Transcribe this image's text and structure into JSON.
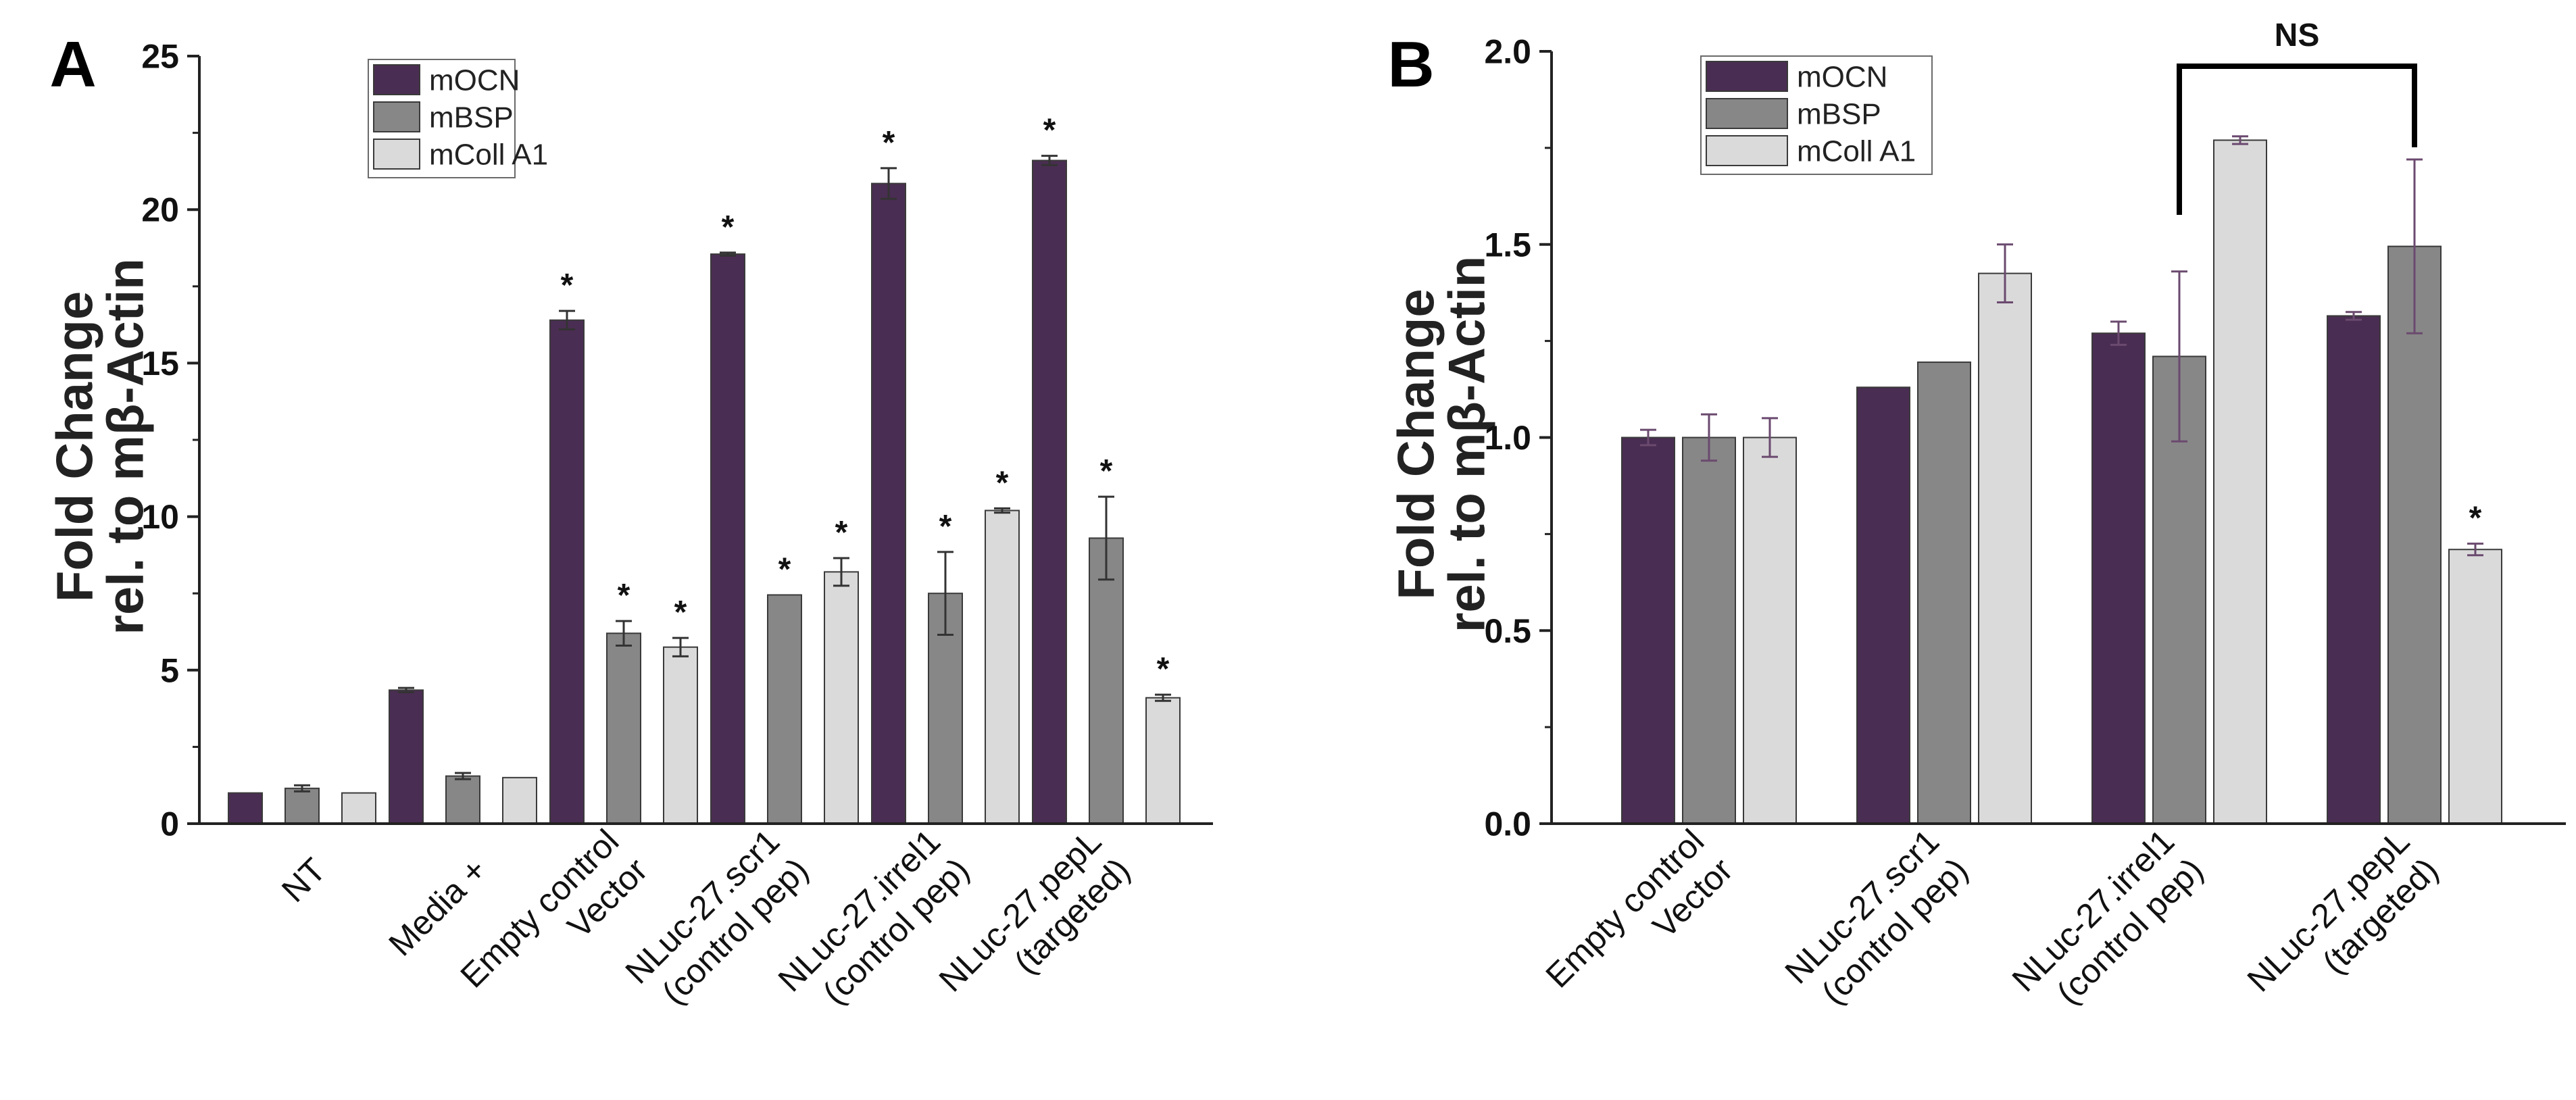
{
  "figure": {
    "beta_symbol": "β"
  },
  "chart_data": [
    {
      "panel_label": "A",
      "type": "bar",
      "title": "",
      "ylabel_line1": "Fold Change",
      "ylabel_line2": "rel. to mβ-Actin",
      "xlabel": "",
      "ylim": [
        0,
        25
      ],
      "yticks": [
        0,
        5,
        10,
        15,
        20,
        25
      ],
      "ytick_labels": [
        "0",
        "5",
        "10",
        "15",
        "20",
        "25"
      ],
      "legend_position": "top-left",
      "categories": [
        [
          "NT"
        ],
        [
          "Media +"
        ],
        [
          "Empty control",
          "Vector"
        ],
        [
          "NLuc-27.scr1",
          "(control pep)"
        ],
        [
          "NLuc-27.irrel1",
          "(control pep)"
        ],
        [
          "NLuc-27.pepL",
          "(targeted)"
        ]
      ],
      "series": [
        {
          "name": "mOCN",
          "color": "#4a2d52",
          "values": [
            1.0,
            4.35,
            16.4,
            18.55,
            20.85,
            21.6
          ],
          "errors": [
            0.0,
            0.07,
            0.3,
            0.05,
            0.5,
            0.15
          ],
          "significant": [
            false,
            false,
            true,
            true,
            true,
            true
          ]
        },
        {
          "name": "mBSP",
          "color": "#878787",
          "values": [
            1.15,
            1.55,
            6.2,
            7.45,
            7.5,
            9.3
          ],
          "errors": [
            0.1,
            0.1,
            0.4,
            0.0,
            1.35,
            1.35
          ],
          "significant": [
            false,
            false,
            true,
            true,
            true,
            true
          ]
        },
        {
          "name": "mColl A1",
          "color": "#dadada",
          "values": [
            1.0,
            1.5,
            5.75,
            8.2,
            10.2,
            4.1
          ],
          "errors": [
            0.0,
            0.0,
            0.3,
            0.45,
            0.07,
            0.1
          ],
          "significant": [
            false,
            false,
            true,
            true,
            true,
            true
          ]
        }
      ],
      "significance_marker": "*"
    },
    {
      "panel_label": "B",
      "type": "bar",
      "title": "",
      "ylabel_line1": "Fold Change",
      "ylabel_line2": "rel. to mβ-Actin",
      "xlabel": "",
      "ylim": [
        0,
        2.0
      ],
      "yticks": [
        0,
        0.5,
        1.0,
        1.5,
        2.0
      ],
      "ytick_labels": [
        "0.0",
        "0.5",
        "1.0",
        "1.5",
        "2.0"
      ],
      "legend_position": "top-left",
      "categories": [
        [
          "Empty control",
          "Vector"
        ],
        [
          "NLuc-27.scr1",
          "(control pep)"
        ],
        [
          "NLuc-27.irrel1",
          "(control pep)"
        ],
        [
          "NLuc-27.pepL",
          "(targeted)"
        ]
      ],
      "series": [
        {
          "name": "mOCN",
          "color": "#4a2d52",
          "values": [
            1.0,
            1.13,
            1.27,
            1.315
          ],
          "errors": [
            0.02,
            0.0,
            0.03,
            0.01
          ],
          "significant": [
            false,
            false,
            false,
            false
          ]
        },
        {
          "name": "mBSP",
          "color": "#878787",
          "values": [
            1.0,
            1.195,
            1.21,
            1.495
          ],
          "errors": [
            0.06,
            0.0,
            0.22,
            0.225
          ],
          "significant": [
            false,
            false,
            false,
            false
          ]
        },
        {
          "name": "mColl A1",
          "color": "#dadada",
          "values": [
            1.0,
            1.425,
            1.77,
            0.71
          ],
          "errors": [
            0.05,
            0.075,
            0.01,
            0.015
          ],
          "significant": [
            false,
            false,
            false,
            true
          ]
        }
      ],
      "significance_marker": "*",
      "bracket": {
        "label": "NS",
        "from_category": 2,
        "to_category": 3,
        "series_index": 1
      }
    }
  ]
}
